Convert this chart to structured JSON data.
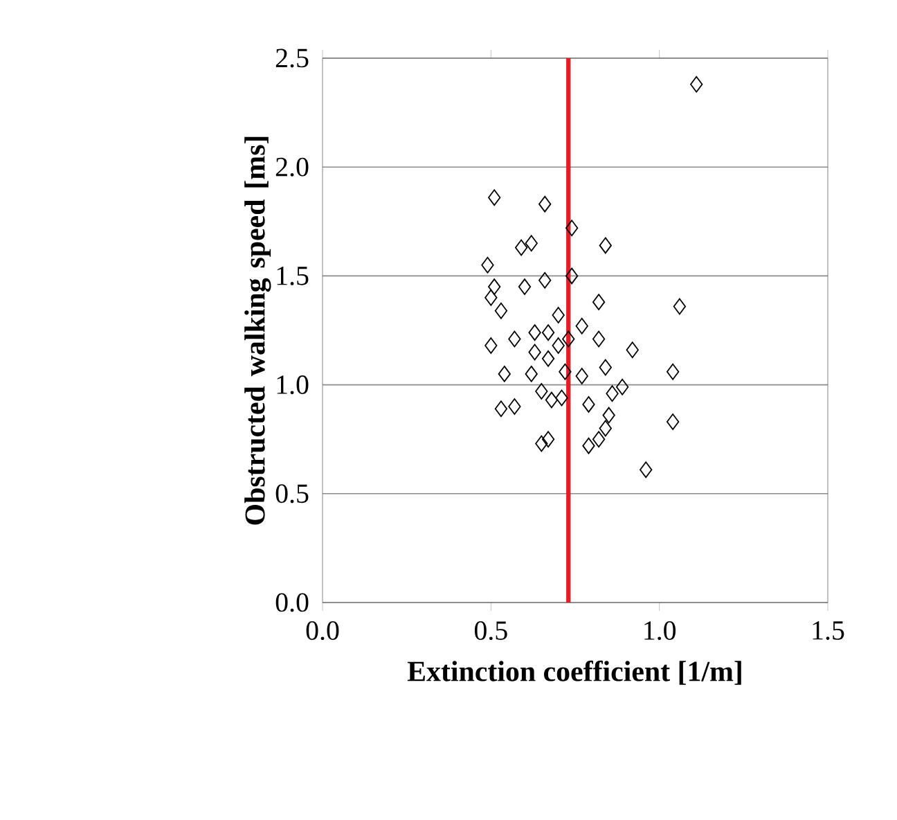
{
  "chart_data": {
    "type": "scatter",
    "xlabel": "Extinction coefficient [1/m]",
    "ylabel": "Obstructed walking speed [ms]",
    "x": [
      0.51,
      0.66,
      0.74,
      0.49,
      0.84,
      0.62,
      0.59,
      0.51,
      0.5,
      0.6,
      0.53,
      0.66,
      0.74,
      0.82,
      1.06,
      0.7,
      0.63,
      0.67,
      0.77,
      0.7,
      0.73,
      0.82,
      0.57,
      0.5,
      0.92,
      0.84,
      1.04,
      0.54,
      0.62,
      0.72,
      0.77,
      0.65,
      0.71,
      0.89,
      0.57,
      0.53,
      0.79,
      0.85,
      1.04,
      0.65,
      0.67,
      0.82,
      0.84,
      0.79,
      0.96,
      1.11,
      0.67,
      0.63,
      0.86,
      0.68
    ],
    "series": [
      {
        "color": "#000000",
        "values": [
          1.86,
          1.83,
          1.72,
          1.55,
          1.64,
          1.65,
          1.63,
          1.45,
          1.4,
          1.45,
          1.34,
          1.48,
          1.5,
          1.38,
          1.36,
          1.32,
          1.24,
          1.24,
          1.27,
          1.18,
          1.21,
          1.21,
          1.21,
          1.18,
          1.16,
          1.08,
          1.06,
          1.05,
          1.05,
          1.06,
          1.04,
          0.97,
          0.94,
          0.99,
          0.9,
          0.89,
          0.91,
          0.86,
          0.83,
          0.73,
          0.75,
          0.75,
          0.8,
          0.72,
          0.61,
          2.38,
          1.12,
          1.15,
          0.96,
          0.93
        ]
      }
    ],
    "xlim": [
      0,
      1.5
    ],
    "ylim": [
      0,
      2.5
    ],
    "xticks": [
      {
        "value": 0,
        "label": "0.0"
      },
      {
        "value": 0.5,
        "label": "0.5"
      },
      {
        "value": 1.0,
        "label": "1.0"
      },
      {
        "value": 1.5,
        "label": "1.5"
      }
    ],
    "yticks": [
      {
        "value": 0,
        "label": "0.0"
      },
      {
        "value": 0.5,
        "label": "0.5"
      },
      {
        "value": 1.0,
        "label": "1.0"
      },
      {
        "value": 1.5,
        "label": "1.5"
      },
      {
        "value": 2.0,
        "label": "2.0"
      },
      {
        "value": 2.5,
        "label": "2.5"
      }
    ],
    "grid": "y",
    "marker": "diamond",
    "ref_lines": [
      {
        "axis": "x",
        "value": 0.73,
        "color": "#e41e26"
      }
    ]
  }
}
